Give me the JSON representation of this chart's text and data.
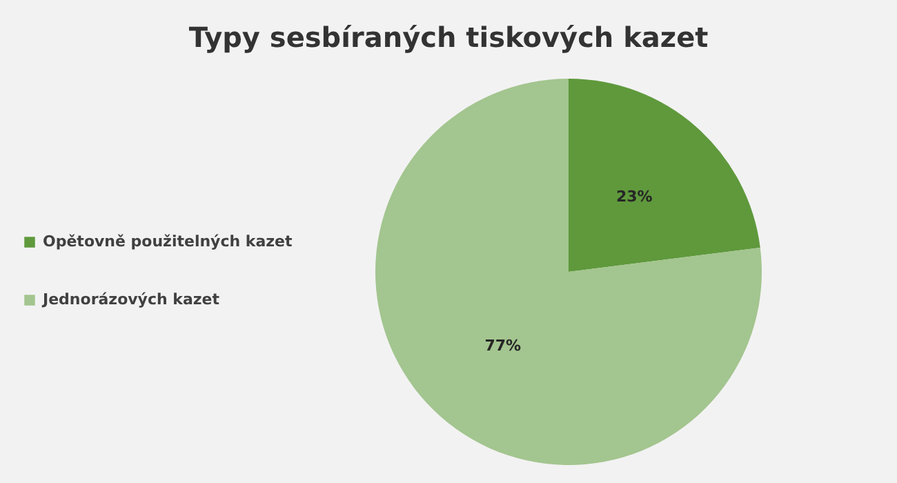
{
  "chart_data": {
    "type": "pie",
    "title": "Typy sesbíraných tiskových kazet",
    "categories": [
      "Opětovně použitelných kazet",
      "Jednorázových kazet"
    ],
    "values": [
      23,
      77
    ],
    "colors": [
      "#5f993c",
      "#a3c58f"
    ],
    "value_labels": [
      "23%",
      "77%"
    ],
    "legend": "left"
  }
}
